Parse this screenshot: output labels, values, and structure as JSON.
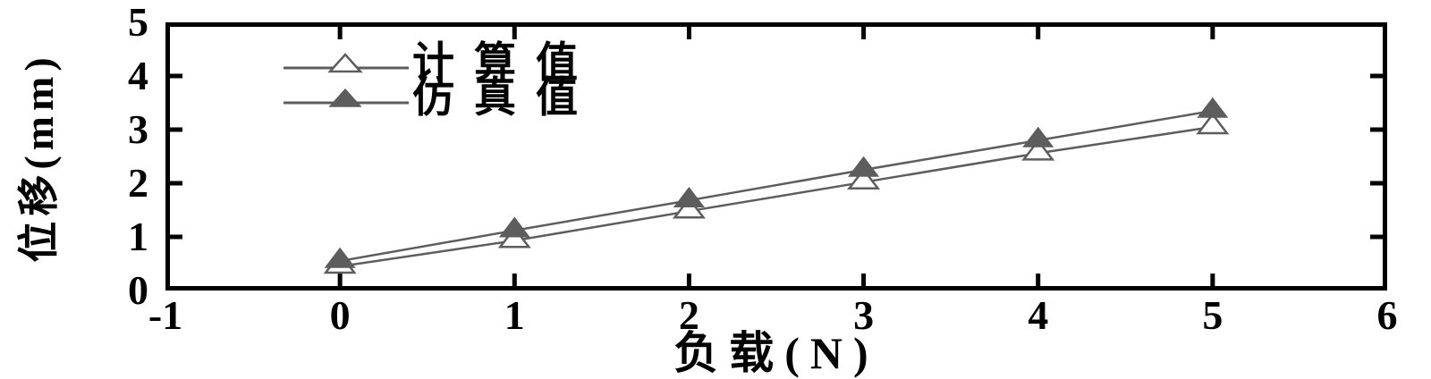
{
  "figure": {
    "background_color": "#ffffff",
    "axis_color": "#000000",
    "series_color": "#5d5d5d",
    "open_marker_fill": "#ffffff"
  },
  "chart_data": {
    "type": "line",
    "title": "",
    "xlabel": "负载(N)",
    "ylabel": "位移(mm)",
    "xlim": [
      -1,
      6
    ],
    "ylim": [
      0,
      5
    ],
    "x_tick_labels": [
      "-1",
      "0",
      "1",
      "2",
      "3",
      "4",
      "5",
      "6"
    ],
    "y_tick_labels": [
      "0",
      "1",
      "2",
      "3",
      "4",
      "5"
    ],
    "grid": false,
    "tick_direction": "in",
    "ticks_all_sides": true,
    "legend_position": "top-left-inside",
    "x": [
      0,
      1,
      2,
      3,
      4,
      5
    ],
    "series": [
      {
        "name": "计算值",
        "marker": "triangle-open",
        "line_color": "#5d5d5d",
        "values": [
          0.45,
          0.93,
          1.48,
          2.02,
          2.56,
          3.05
        ]
      },
      {
        "name": "仿真值",
        "marker": "triangle-filled",
        "line_color": "#5d5d5d",
        "values": [
          0.55,
          1.12,
          1.68,
          2.25,
          2.8,
          3.35
        ]
      }
    ]
  }
}
